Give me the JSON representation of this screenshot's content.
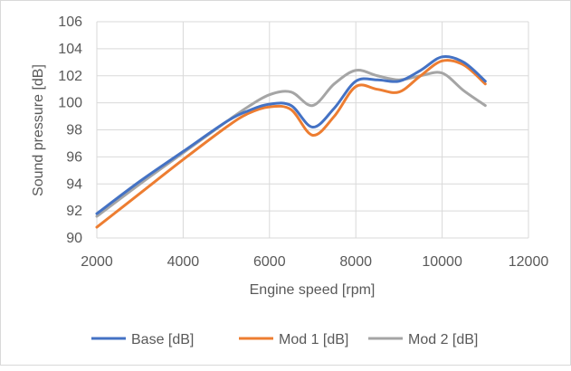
{
  "chart_data": {
    "type": "line",
    "title": "",
    "xlabel": "Engine speed [rpm]",
    "ylabel": "Sound pressure [dB]",
    "xlim": [
      2000,
      12000
    ],
    "ylim": [
      90,
      106
    ],
    "xticks": [
      2000,
      4000,
      6000,
      8000,
      10000,
      12000
    ],
    "yticks": [
      90,
      92,
      94,
      96,
      98,
      100,
      102,
      104,
      106
    ],
    "xtick_labels": [
      "2000",
      "4000",
      "6000",
      "8000",
      "10000",
      "12000"
    ],
    "ytick_labels": [
      "90",
      "92",
      "94",
      "96",
      "98",
      "100",
      "102",
      "104",
      "106"
    ],
    "grid": "major gridlines",
    "legend_position": "bottom",
    "series": [
      {
        "name": "Base  [dB]",
        "color": "#4472c4",
        "x": [
          2000,
          3000,
          4000,
          5000,
          5500,
          6000,
          6500,
          7000,
          7500,
          8000,
          8500,
          9000,
          9500,
          10000,
          10500,
          11000
        ],
        "y": [
          91.8,
          94.2,
          96.4,
          98.6,
          99.4,
          99.9,
          99.8,
          98.2,
          99.6,
          101.6,
          101.7,
          101.6,
          102.4,
          103.4,
          103.0,
          101.6
        ]
      },
      {
        "name": "Mod 1  [dB]",
        "color": "#ed7d31",
        "x": [
          2000,
          3000,
          4000,
          5000,
          5500,
          6000,
          6500,
          7000,
          7500,
          8000,
          8500,
          9000,
          9500,
          10000,
          10500,
          11000
        ],
        "y": [
          90.8,
          93.3,
          95.8,
          98.2,
          99.2,
          99.7,
          99.5,
          97.6,
          99.0,
          101.2,
          101.0,
          100.8,
          102.0,
          103.1,
          102.8,
          101.4
        ]
      },
      {
        "name": "Mod 2  [dB]",
        "color": "#a5a5a5",
        "x": [
          2000,
          3000,
          4000,
          5000,
          5500,
          6000,
          6500,
          7000,
          7500,
          8000,
          8500,
          9000,
          9500,
          10000,
          10500,
          11000
        ],
        "y": [
          91.6,
          94.0,
          96.3,
          98.6,
          99.7,
          100.6,
          100.8,
          99.8,
          101.4,
          102.4,
          102.0,
          101.7,
          102.0,
          102.2,
          100.9,
          99.8
        ]
      }
    ]
  }
}
